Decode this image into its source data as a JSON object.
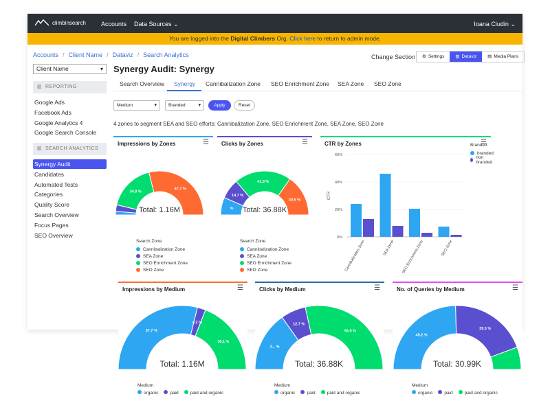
{
  "topnav": {
    "logo_text": "climbinsearch",
    "nav_accounts": "Accounts",
    "nav_sources": "Data Sources",
    "user": "Ioana Ciudin"
  },
  "banner": {
    "pre": "You are logged into the ",
    "org": "Digital Climbers",
    "mid": " Org. ",
    "link": "Click here",
    "post": " to return to admin mode."
  },
  "breadcrumb": [
    "Accounts",
    "Client Name",
    "Dataviz",
    "Search Analytics"
  ],
  "header": {
    "change_section": "Change Section",
    "settings": "Settings",
    "dataviz": "Dataviz",
    "media_plans": "Media Plans"
  },
  "sidebar": {
    "client_select": "Client Name",
    "reporting_head": "REPORTING",
    "reporting_items": [
      "Google Ads",
      "Facebook Ads",
      "Google Analytics 4",
      "Google Search Console"
    ],
    "analytics_head": "SEARCH ANALYTICS",
    "analytics_items": [
      "Synergy Audit",
      "Candidates",
      "Automated Tests",
      "Categories",
      "Quality Score",
      "Search Overview",
      "Focus Pages",
      "SEO Overview"
    ]
  },
  "page": {
    "title": "Synergy Audit: Synergy",
    "tabs": [
      "Search Overview",
      "Synergy",
      "Cannibalization Zone",
      "SEO Enrichment Zone",
      "SEA Zone",
      "SEO Zone"
    ],
    "filter_medium": "Medium",
    "filter_branded": "Branded",
    "apply": "Apply",
    "reset": "Reset",
    "description": "4 zones to segment SEA and SEO efforts: Cannibalization Zone, SEO Enrichment Zone, SEA Zone, SEO Zone"
  },
  "colors": {
    "blue": "#2ea6f2",
    "purple": "#5a4fcf",
    "green": "#00dd6e",
    "orange": "#ff6a33",
    "accent": "#4a55f0"
  },
  "charts": {
    "imp_zones": {
      "title": "Impressions by Zones",
      "total": "Total: 1.16M",
      "legend_title": "Search Zone",
      "legend": [
        "Cannibalization Zone",
        "SEA Zone",
        "SEO Enrichment Zone",
        "SEO Zone"
      ],
      "labels": [
        "34.9 %",
        "57.7 %"
      ]
    },
    "clicks_zones": {
      "title": "Clicks by Zones",
      "total": "Total: 36.88K",
      "legend_title": "Search Zone",
      "legend": [
        "Cannibalization Zone",
        "SEA Zone",
        "SEO Enrichment Zone",
        "SEO Zone"
      ],
      "labels": [
        "14.7 %",
        "41.9 %",
        "30.5 %",
        "%"
      ]
    },
    "ctr_zones": {
      "title": "CTR by Zones",
      "legend_title": "Branded",
      "legend": [
        "branded",
        "non branded"
      ],
      "ylabel": "CTR",
      "yticks": [
        "60%",
        "40%",
        "20%",
        "0%"
      ]
    },
    "imp_medium": {
      "title": "Impressions by Medium",
      "total": "Total: 1.16M",
      "legend_title": "Medium",
      "legend": [
        "organic",
        "paid",
        "paid and organic"
      ],
      "labels": [
        "57.7 %",
        "4.2 %",
        "38.1 %"
      ]
    },
    "clicks_medium": {
      "title": "Clicks by Medium",
      "total": "Total: 36.88K",
      "legend_title": "Medium",
      "legend": [
        "organic",
        "paid",
        "paid and organic"
      ],
      "labels": [
        "3... %",
        "12.7 %",
        "56.9 %"
      ]
    },
    "queries_medium": {
      "title": "No. of Queries by Medium",
      "total": "Total: 30.99K",
      "legend_title": "Medium",
      "legend": [
        "organic",
        "paid",
        "paid and organic"
      ],
      "labels": [
        "49.2 %",
        "39.5 %"
      ]
    }
  },
  "chart_data": [
    {
      "type": "pie",
      "title": "Impressions by Zones",
      "categories": [
        "Cannibalization Zone",
        "SEA Zone",
        "SEO Enrichment Zone",
        "SEO Zone"
      ],
      "values": [
        2.6,
        4.8,
        34.9,
        57.7
      ]
    },
    {
      "type": "pie",
      "title": "Clicks by Zones",
      "categories": [
        "Cannibalization Zone",
        "SEA Zone",
        "SEO Enrichment Zone",
        "SEO Zone"
      ],
      "values": [
        12.9,
        14.7,
        41.9,
        30.5
      ]
    },
    {
      "type": "bar",
      "title": "CTR by Zones",
      "categories": [
        "Cannibalization Zone",
        "SEA Zone",
        "SEO Enrichment Zone",
        "SEO Zone"
      ],
      "series": [
        {
          "name": "branded",
          "values": [
            24,
            46,
            20.5,
            7.5
          ]
        },
        {
          "name": "non branded",
          "values": [
            13,
            8,
            3,
            1.5
          ]
        }
      ],
      "ylabel": "CTR",
      "ylim": [
        0,
        60
      ]
    },
    {
      "type": "pie",
      "title": "Impressions by Medium",
      "categories": [
        "organic",
        "paid",
        "paid and organic"
      ],
      "values": [
        57.7,
        4.2,
        38.1
      ]
    },
    {
      "type": "pie",
      "title": "Clicks by Medium",
      "categories": [
        "organic",
        "paid",
        "paid and organic"
      ],
      "values": [
        30.4,
        12.7,
        56.9
      ]
    },
    {
      "type": "pie",
      "title": "No. of Queries by Medium",
      "categories": [
        "organic",
        "paid",
        "paid and organic"
      ],
      "values": [
        49.2,
        39.5,
        11.3
      ]
    }
  ]
}
